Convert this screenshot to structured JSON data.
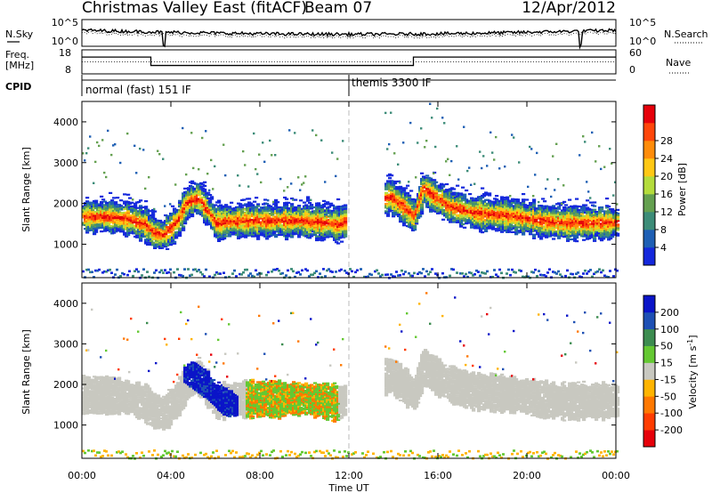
{
  "header": {
    "title": "Christmas Valley East (fitACF)",
    "beam": "Beam 07",
    "date": "12/Apr/2012"
  },
  "panels": {
    "nsky": {
      "left_label": "N.Sky",
      "right_label": "N.Search",
      "left_ticks": [
        "10^5",
        "10^0"
      ],
      "right_ticks": [
        "10^5",
        "10^0"
      ]
    },
    "freq": {
      "left_label_1": "Freq.",
      "left_label_2": "[MHz]",
      "right_label": "Nave",
      "left_ticks": [
        "18",
        "8"
      ],
      "right_ticks": [
        "60",
        "0"
      ]
    },
    "cpid": {
      "label": "CPID",
      "mode_1": "normal (fast) 151 IF",
      "mode_2": "themis 3300 IF"
    }
  },
  "axes": {
    "ylabel": "Slant Range [km]",
    "xlabel": "Time UT",
    "y_ticks": [
      "1000",
      "2000",
      "3000",
      "4000"
    ],
    "x_ticks": [
      "00:00",
      "04:00",
      "08:00",
      "12:00",
      "16:00",
      "20:00",
      "00:00"
    ]
  },
  "colorbars": {
    "power": {
      "label": "Power [dB]",
      "ticks": [
        "4",
        "8",
        "12",
        "16",
        "20",
        "24",
        "28"
      ],
      "colors": [
        "#1428dc",
        "#1e5fb4",
        "#3c8c78",
        "#64a050",
        "#b4dc3c",
        "#ffc814",
        "#ff8c0a",
        "#ff460a",
        "#e6000a"
      ]
    },
    "velocity": {
      "label": "Velocity [m s^-1]",
      "ticks": [
        "200",
        "100",
        "50",
        "15",
        "-15",
        "-50",
        "-100",
        "-200"
      ],
      "colors": [
        "#0a14c8",
        "#1e50b4",
        "#3c8c50",
        "#64c832",
        "#c8c8c0",
        "#ffb400",
        "#ff7800",
        "#ff3c00",
        "#e6000a"
      ]
    }
  },
  "chart_data": {
    "type": "heatmap",
    "title": "Christmas Valley East (fitACF)",
    "xlabel": "Time UT",
    "ylabel": "Slant Range [km]",
    "xlim": [
      0,
      24
    ],
    "ylim": [
      180,
      4500
    ],
    "power_echo_center_km": [
      [
        0,
        1650
      ],
      [
        1,
        1650
      ],
      [
        2,
        1600
      ],
      [
        2.8,
        1450
      ],
      [
        3.2,
        1250
      ],
      [
        3.6,
        1200
      ],
      [
        4.2,
        1500
      ],
      [
        4.7,
        2000
      ],
      [
        5.2,
        2100
      ],
      [
        5.6,
        1800
      ],
      [
        6,
        1500
      ],
      [
        7,
        1550
      ],
      [
        8,
        1550
      ],
      [
        9,
        1550
      ],
      [
        10,
        1550
      ],
      [
        11,
        1500
      ],
      [
        11.5,
        1450
      ],
      [
        13.8,
        2150
      ],
      [
        14.4,
        1900
      ],
      [
        14.9,
        1650
      ],
      [
        15.3,
        2350
      ],
      [
        15.8,
        2150
      ],
      [
        16.5,
        1900
      ],
      [
        17.5,
        1750
      ],
      [
        18.5,
        1700
      ],
      [
        19.5,
        1650
      ],
      [
        20.5,
        1550
      ],
      [
        21.5,
        1500
      ],
      [
        22.5,
        1500
      ],
      [
        23.5,
        1500
      ],
      [
        24,
        1500
      ]
    ],
    "velocity_blue_band_km": [
      [
        4.5,
        2400
      ],
      [
        5.5,
        2000
      ],
      [
        6.3,
        1600
      ],
      [
        7,
        1350
      ]
    ],
    "velocity_green_band_km": [
      [
        7.3,
        1500
      ],
      [
        9,
        1550
      ],
      [
        10.5,
        1600
      ],
      [
        11.5,
        1600
      ]
    ],
    "cpid_change_ut": 12
  }
}
